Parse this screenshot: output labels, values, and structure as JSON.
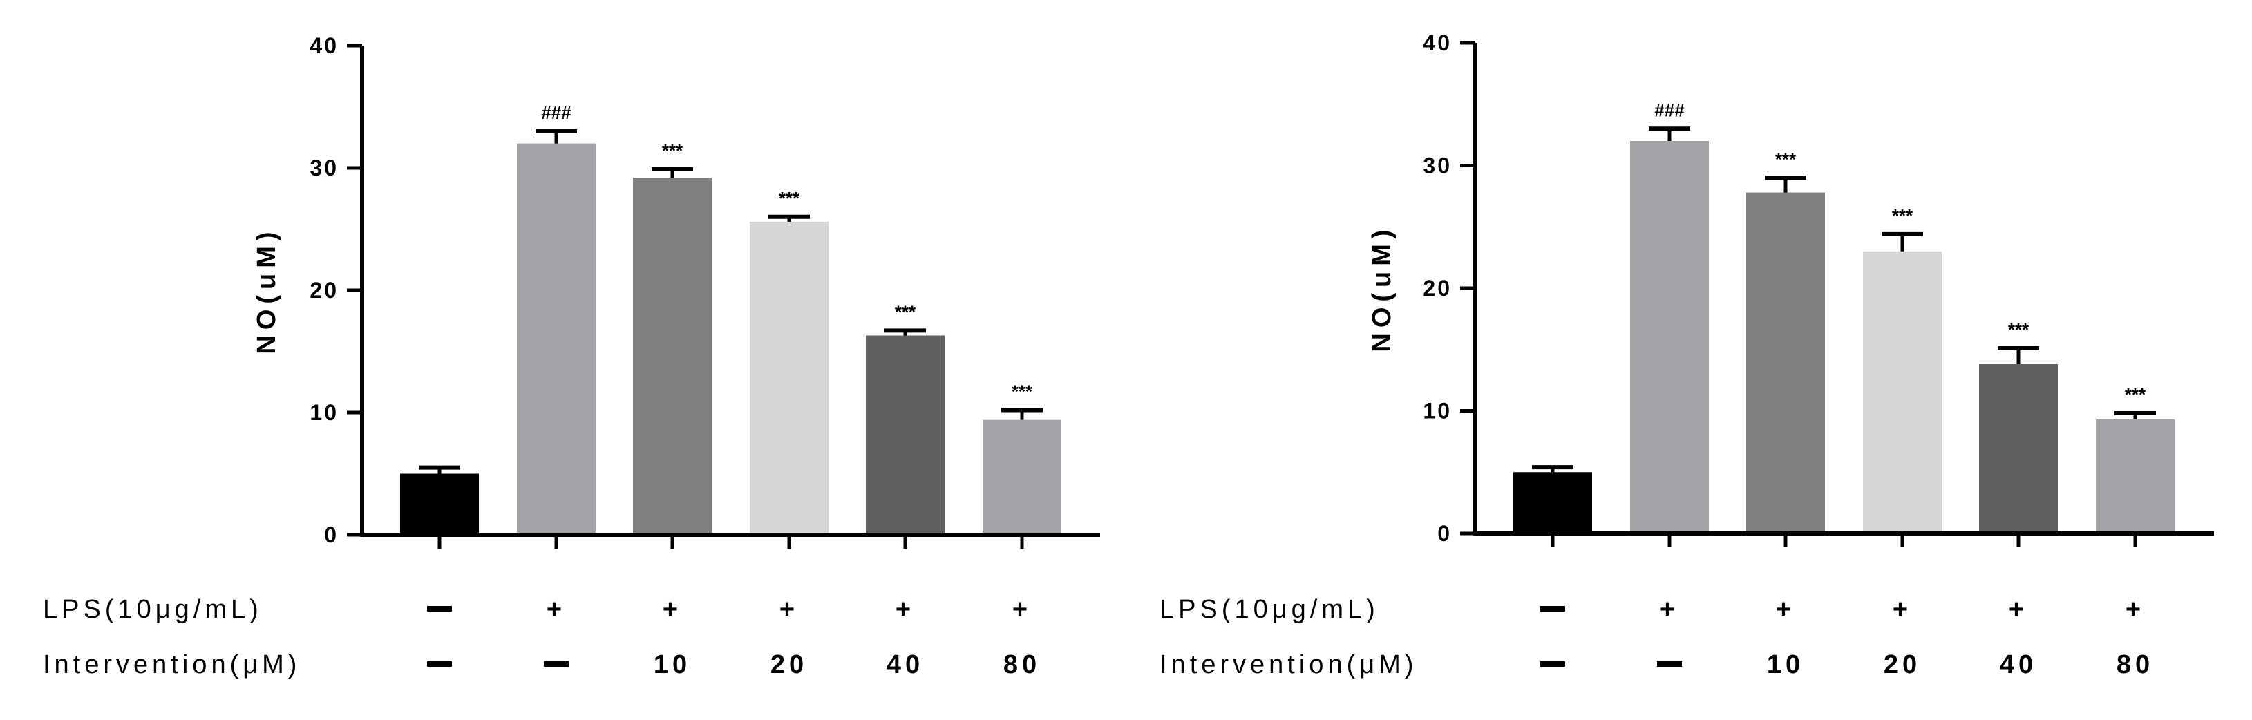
{
  "chart_data": [
    {
      "type": "bar",
      "title": "",
      "xlabel": "",
      "ylabel": "NO(uM)",
      "ylim": [
        0,
        40
      ],
      "yticks": [
        "0",
        "10",
        "20",
        "30",
        "40"
      ],
      "bar_colors": [
        "#000000",
        "#a2a2a7",
        "#7f7f7f",
        "#d6d6d6",
        "#5f5f5f",
        "#a2a2a7"
      ],
      "values": [
        5.0,
        32.0,
        29.2,
        25.6,
        16.3,
        9.4
      ],
      "errors": [
        0.5,
        1.0,
        0.7,
        0.4,
        0.4,
        0.8
      ],
      "significance": [
        "",
        "###",
        "***",
        "***",
        "***",
        "***"
      ],
      "rows": [
        {
          "label": "LPS(10μg/mL)",
          "values": [
            "−",
            "+",
            "+",
            "+",
            "+",
            "+"
          ]
        },
        {
          "label": "Intervention(μM)",
          "values": [
            "−",
            "−",
            "10",
            "20",
            "40",
            "80"
          ]
        }
      ]
    },
    {
      "type": "bar",
      "title": "",
      "xlabel": "",
      "ylabel": "NO(uM)",
      "ylim": [
        0,
        40
      ],
      "yticks": [
        "0",
        "10",
        "20",
        "30",
        "40"
      ],
      "bar_colors": [
        "#000000",
        "#a2a2a7",
        "#7f7f7f",
        "#d6d6d6",
        "#5f5f5f",
        "#a2a2a7"
      ],
      "values": [
        5.0,
        32.0,
        27.8,
        23.0,
        13.8,
        9.3
      ],
      "errors": [
        0.4,
        1.0,
        1.2,
        1.4,
        1.3,
        0.5
      ],
      "significance": [
        "",
        "###",
        "***",
        "***",
        "***",
        "***"
      ],
      "rows": [
        {
          "label": "LPS(10μg/mL)",
          "values": [
            "−",
            "+",
            "+",
            "+",
            "+",
            "+"
          ]
        },
        {
          "label": "Intervention(μM)",
          "values": [
            "−",
            "−",
            "10",
            "20",
            "40",
            "80"
          ]
        }
      ]
    }
  ]
}
